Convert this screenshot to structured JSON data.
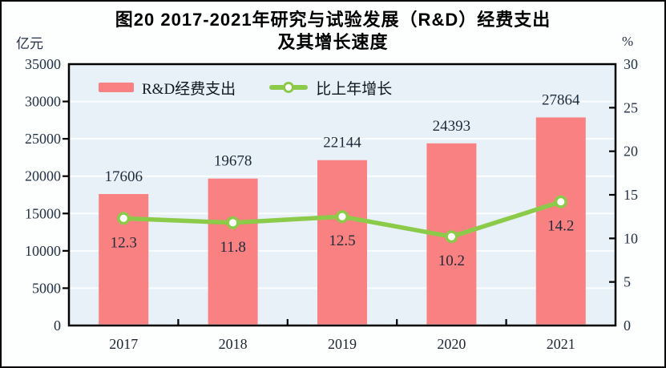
{
  "title": {
    "line1": "图20  2017-2021年研究与试验发展（R&D）经费支出",
    "line2": "及其增长速度"
  },
  "axes": {
    "left_unit": "亿元",
    "right_unit": "%",
    "left_ticks": [
      0,
      5000,
      10000,
      15000,
      20000,
      25000,
      30000,
      35000
    ],
    "right_ticks": [
      0,
      5,
      10,
      15,
      20,
      25,
      30
    ]
  },
  "colors": {
    "bar": "#fa8181",
    "line": "#8cca49",
    "marker_fill": "#ffffff",
    "plot_bg": "#e8f1f8",
    "grid": "#fbfdfe",
    "frame": "#000000",
    "text": "#223044"
  },
  "chart_data": {
    "type": "bar",
    "title": "图20 2017-2021年研究与试验发展（R&D）经费支出及其增长速度",
    "categories": [
      "2017",
      "2018",
      "2019",
      "2020",
      "2021"
    ],
    "series": [
      {
        "name": "R&D经费支出",
        "type": "bar",
        "axis": "left",
        "values": [
          17606,
          19678,
          22144,
          24393,
          27864
        ]
      },
      {
        "name": "比上年增长",
        "type": "line",
        "axis": "right",
        "values": [
          12.3,
          11.8,
          12.5,
          10.2,
          14.2
        ]
      }
    ],
    "left_axis": {
      "label": "亿元",
      "range": [
        0,
        35000
      ],
      "step": 5000
    },
    "right_axis": {
      "label": "%",
      "range": [
        0,
        30
      ],
      "step": 5
    },
    "grid": true,
    "legend_position": "top-left-inside"
  }
}
